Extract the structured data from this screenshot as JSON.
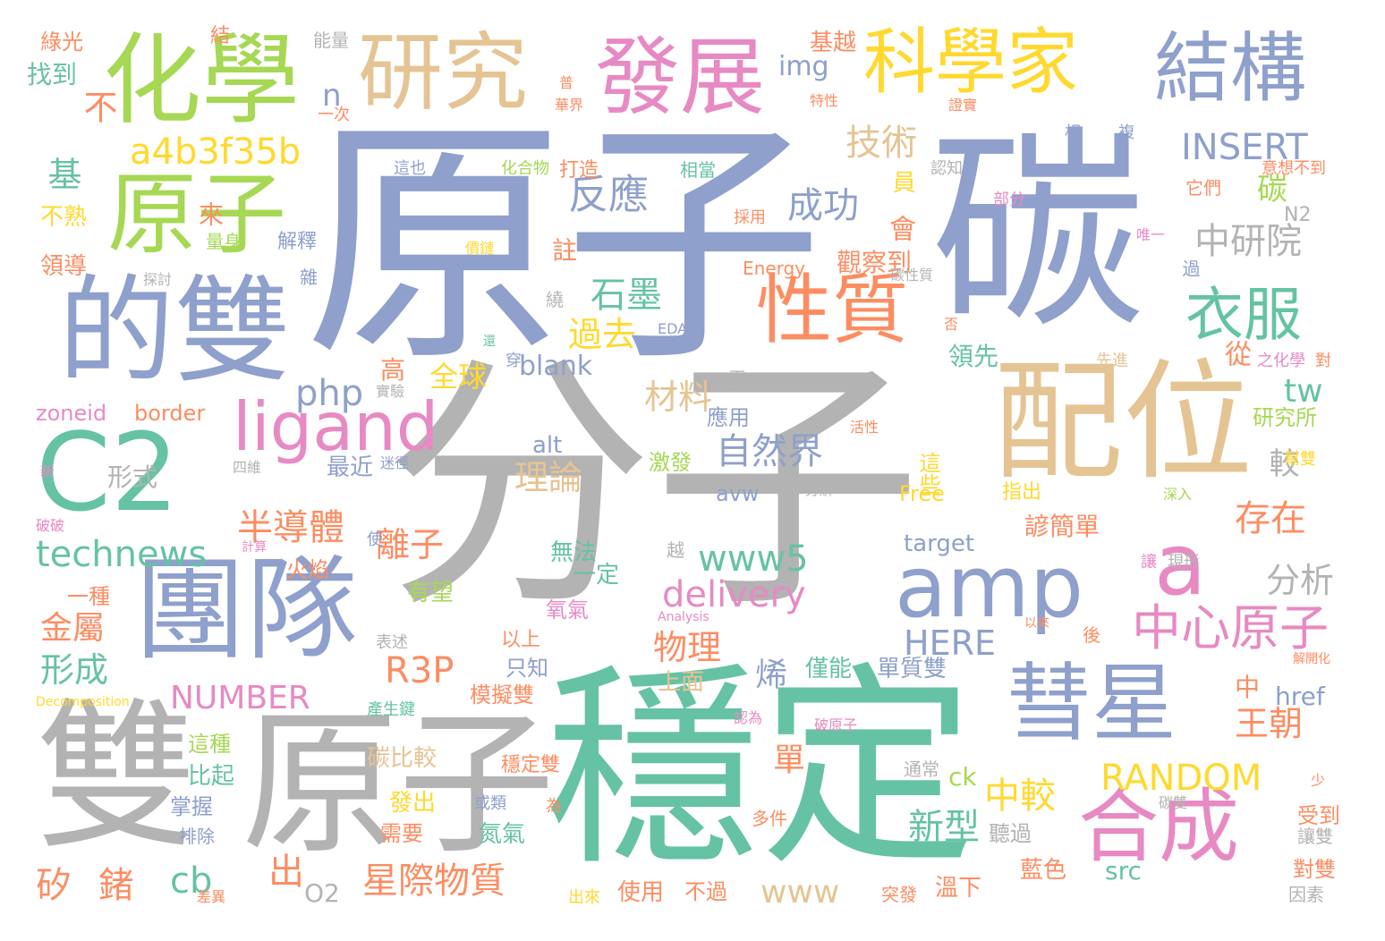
{
  "palette": {
    "blue": "#8ea0cb",
    "gray": "#b3b3b3",
    "teal": "#66c2a5",
    "green": "#a6d854",
    "pink": "#e78ac3",
    "tan": "#e5c494",
    "yellow": "#ffd92f",
    "orange": "#fc8d62"
  },
  "words": [
    "原子",
    "分子",
    "碳",
    "穩定",
    "雙",
    "原子",
    "配位",
    "的雙",
    "化學",
    "原子",
    "團隊",
    "C2",
    "amp",
    "a",
    "研究",
    "發展",
    "科學家",
    "結構",
    "性質",
    "彗星",
    "合成",
    "ligand",
    "衣服",
    "中心原子",
    "反應",
    "成功",
    "中研院",
    "技術",
    "a4b3f35b",
    "INSERT",
    "php",
    "technews",
    "www5",
    "delivery",
    "HERE",
    "R3P",
    "NUMBER",
    "RANDOM",
    "自然界",
    "半導體",
    "星際物質",
    "離子",
    "王朝",
    "存在",
    "分析",
    "石墨",
    "材料",
    "理論",
    "過去",
    "全球",
    "物理",
    "新型",
    "中較",
    "矽",
    "鍺",
    "cb",
    "出",
    "形成",
    "金屬",
    "www",
    "tw",
    "blank",
    "zoneid",
    "border",
    "alt",
    "avw",
    "target",
    "Free",
    "src",
    "href",
    "ck",
    "img",
    "n",
    "O2",
    "N2",
    "Energy",
    "EDA",
    "Analysis",
    "Decomposition",
    "基",
    "不",
    "找到",
    "綠光",
    "結",
    "能量",
    "基越",
    "一次",
    "華界",
    "特性",
    "證實",
    "相",
    "複",
    "這也",
    "化合物",
    "打造",
    "相當",
    "認知",
    "部分",
    "它們",
    "意想不到",
    "來",
    "不熟",
    "量身",
    "解釋",
    "領導",
    "探討",
    "雜",
    "價鏈",
    "採用",
    "唯一",
    "過",
    "觀察到",
    "會",
    "員",
    "註",
    "碳",
    "較",
    "研究所",
    "幫雙",
    "活性",
    "四維",
    "迷徑",
    "分解",
    "深入",
    "指出",
    "這些",
    "單質雙",
    "僅能",
    "烯",
    "上面",
    "應用",
    "激發",
    "最近",
    "形式",
    "新",
    "破破",
    "計算",
    "使",
    "火焰",
    "無法",
    "一定",
    "有望",
    "氧氣",
    "一種",
    "以上",
    "只知",
    "模擬雙",
    "產生鍵",
    "碳比較",
    "這種",
    "比起",
    "掌握",
    "排除",
    "發出",
    "需要",
    "氮氣",
    "或類",
    "為",
    "穩定雙",
    "認為",
    "破原子",
    "通常",
    "多件",
    "碳雙",
    "少",
    "受到",
    "讓雙",
    "對雙",
    "因素",
    "聽過",
    "藍色",
    "溫下",
    "突發",
    "不過",
    "使用",
    "出來",
    "差異",
    "碳性質",
    "表述",
    "以來",
    "後",
    "解開化",
    "讓",
    "現形",
    "先進",
    "之化學",
    "對",
    "穿",
    "更",
    "實驗",
    "還",
    "否",
    "領先",
    "高",
    "越",
    "中",
    "單",
    "諺簡單",
    "繞",
    "從",
    "普"
  ]
}
